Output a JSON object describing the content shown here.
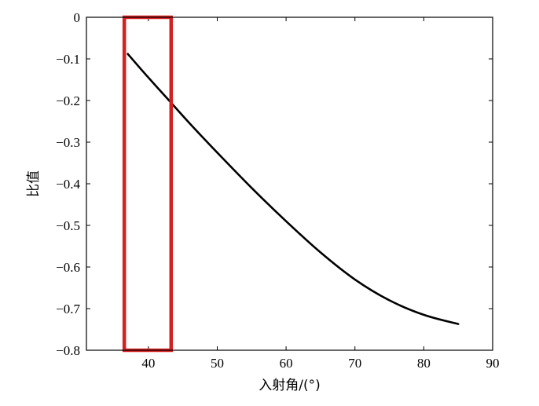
{
  "chart_data": {
    "type": "line",
    "title": "",
    "xlabel": "入射角/(°)",
    "ylabel": "比值",
    "xlim": [
      31,
      90
    ],
    "ylim": [
      -0.8,
      0
    ],
    "x_ticks": [
      40,
      50,
      60,
      70,
      80,
      90
    ],
    "x_tick_labels": [
      "40",
      "50",
      "60",
      "70",
      "80",
      "90"
    ],
    "y_ticks": [
      0,
      -0.1,
      -0.2,
      -0.3,
      -0.4,
      -0.5,
      -0.6,
      -0.7,
      -0.8
    ],
    "y_tick_labels": [
      "0",
      "−0.1",
      "−0.2",
      "−0.3",
      "−0.4",
      "−0.5",
      "−0.6",
      "−0.7",
      "−0.8"
    ],
    "grid": false,
    "series": [
      {
        "x": [
          37,
          40,
          43,
          46,
          50,
          55,
          60,
          65,
          70,
          75,
          80,
          85
        ],
        "y": [
          -0.088,
          -0.145,
          -0.2,
          -0.255,
          -0.325,
          -0.41,
          -0.49,
          -0.565,
          -0.63,
          -0.68,
          -0.715,
          -0.737
        ],
        "color": "#000000"
      }
    ],
    "highlight_region": {
      "x_from": 36.5,
      "x_to": 43.3,
      "y_from": -0.8,
      "y_to": 0,
      "color": "#d42020"
    }
  }
}
